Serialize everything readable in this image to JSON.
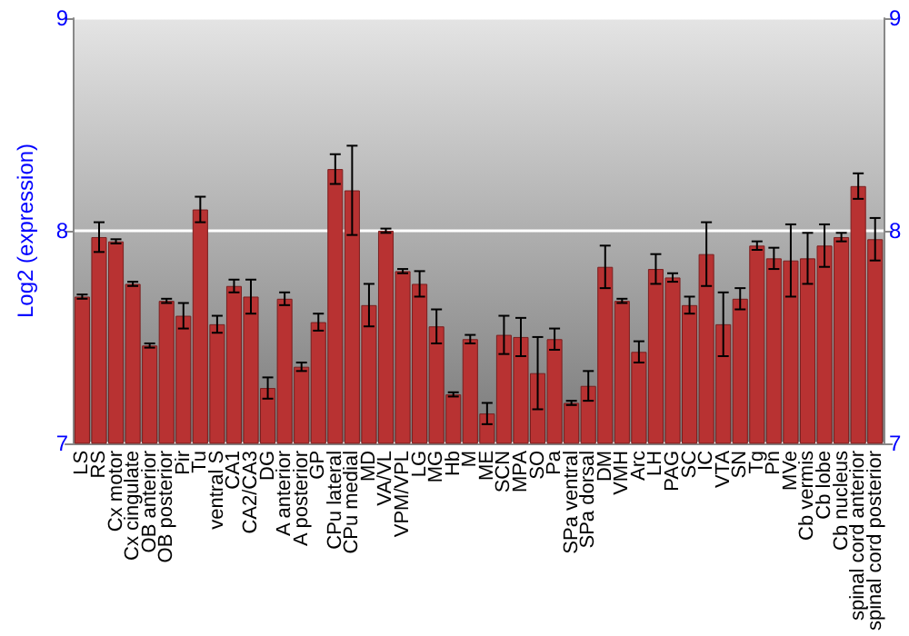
{
  "chart_data": {
    "type": "bar",
    "ylabel": "Log2 (expression)",
    "categories": [
      "LS",
      "RS",
      "Cx motor",
      "Cx cingulate",
      "OB anterior",
      "OB posterior",
      "Pir",
      "Tu",
      "ventral S",
      "CA1",
      "CA2/CA3",
      "DG",
      "A anterior",
      "A posterior",
      "GP",
      "CPu lateral",
      "CPu medial",
      "MD",
      "VA/VL",
      "VPM/VPL",
      "LG",
      "MG",
      "Hb",
      "M",
      "ME",
      "SCN",
      "MPA",
      "SO",
      "Pa",
      "SPa ventral",
      "SPa dorsal",
      "DM",
      "VMH",
      "Arc",
      "LH",
      "PAG",
      "SC",
      "IC",
      "VTA",
      "SN",
      "Tg",
      "Pn",
      "MVe",
      "Cb vermis",
      "Cb lobe",
      "Cb nucleus",
      "spinal cord anterior",
      "spinal cord posterior"
    ],
    "values": [
      7.69,
      7.97,
      7.95,
      7.75,
      7.46,
      7.67,
      7.6,
      8.1,
      7.56,
      7.74,
      7.69,
      7.26,
      7.68,
      7.36,
      7.57,
      8.29,
      8.19,
      7.65,
      8.0,
      7.81,
      7.75,
      7.55,
      7.23,
      7.49,
      7.14,
      7.51,
      7.5,
      7.33,
      7.49,
      7.19,
      7.27,
      7.83,
      7.67,
      7.43,
      7.82,
      7.78,
      7.65,
      7.89,
      7.56,
      7.68,
      7.93,
      7.87,
      7.86,
      7.87,
      7.93,
      7.97,
      8.21,
      7.96
    ],
    "errors": [
      0.01,
      0.07,
      0.01,
      0.01,
      0.01,
      0.01,
      0.06,
      0.06,
      0.04,
      0.03,
      0.08,
      0.05,
      0.03,
      0.02,
      0.04,
      0.07,
      0.21,
      0.1,
      0.01,
      0.01,
      0.06,
      0.08,
      0.01,
      0.02,
      0.05,
      0.09,
      0.09,
      0.17,
      0.05,
      0.01,
      0.07,
      0.1,
      0.01,
      0.05,
      0.07,
      0.02,
      0.04,
      0.15,
      0.15,
      0.05,
      0.02,
      0.05,
      0.17,
      0.12,
      0.1,
      0.02,
      0.06,
      0.1
    ],
    "color": "#b83232",
    "ylim": [
      7,
      9
    ],
    "yticks": [
      7,
      8,
      9
    ],
    "y2lim": [
      7,
      9
    ],
    "y2ticks": [
      7,
      8,
      9
    ],
    "grid": "y"
  }
}
